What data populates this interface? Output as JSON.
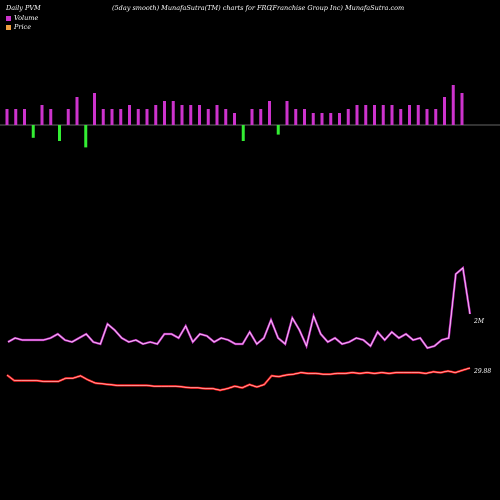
{
  "header": {
    "left": "Daily PVM",
    "center": "(5day smooth) MunafaSutra(TM) charts for FRG",
    "right": "(Franchise Group Inc) MunafaSutra.com"
  },
  "legend": [
    {
      "label": "Volume",
      "color": "#cc33cc"
    },
    {
      "label": "Price",
      "color": "#f0a040"
    }
  ],
  "chart_data": {
    "type": "bar+line",
    "bars": {
      "description": "daily volume bars (up=magenta, down=green)",
      "values": [
        {
          "v": 4,
          "up": true
        },
        {
          "v": 4,
          "up": true
        },
        {
          "v": 4,
          "up": true
        },
        {
          "v": 4,
          "up": false
        },
        {
          "v": 5,
          "up": true
        },
        {
          "v": 4,
          "up": true
        },
        {
          "v": 5,
          "up": false
        },
        {
          "v": 4,
          "up": true
        },
        {
          "v": 7,
          "up": true
        },
        {
          "v": 7,
          "up": false
        },
        {
          "v": 8,
          "up": true
        },
        {
          "v": 4,
          "up": true
        },
        {
          "v": 4,
          "up": true
        },
        {
          "v": 4,
          "up": true
        },
        {
          "v": 5,
          "up": true
        },
        {
          "v": 4,
          "up": true
        },
        {
          "v": 4,
          "up": true
        },
        {
          "v": 5,
          "up": true
        },
        {
          "v": 6,
          "up": true
        },
        {
          "v": 6,
          "up": true
        },
        {
          "v": 5,
          "up": true
        },
        {
          "v": 5,
          "up": true
        },
        {
          "v": 5,
          "up": true
        },
        {
          "v": 4,
          "up": true
        },
        {
          "v": 5,
          "up": true
        },
        {
          "v": 4,
          "up": true
        },
        {
          "v": 3,
          "up": true
        },
        {
          "v": 5,
          "up": false
        },
        {
          "v": 4,
          "up": true
        },
        {
          "v": 4,
          "up": true
        },
        {
          "v": 6,
          "up": true
        },
        {
          "v": 3,
          "up": false
        },
        {
          "v": 6,
          "up": true
        },
        {
          "v": 4,
          "up": true
        },
        {
          "v": 4,
          "up": true
        },
        {
          "v": 3,
          "up": true
        },
        {
          "v": 3,
          "up": true
        },
        {
          "v": 3,
          "up": true
        },
        {
          "v": 3,
          "up": true
        },
        {
          "v": 4,
          "up": true
        },
        {
          "v": 5,
          "up": true
        },
        {
          "v": 5,
          "up": true
        },
        {
          "v": 5,
          "up": true
        },
        {
          "v": 5,
          "up": true
        },
        {
          "v": 5,
          "up": true
        },
        {
          "v": 4,
          "up": true
        },
        {
          "v": 5,
          "up": true
        },
        {
          "v": 5,
          "up": true
        },
        {
          "v": 4,
          "up": true
        },
        {
          "v": 4,
          "up": true
        },
        {
          "v": 7,
          "up": true
        },
        {
          "v": 10,
          "up": true
        },
        {
          "v": 8,
          "up": true
        }
      ]
    },
    "volume_line": {
      "label": "2M",
      "values": [
        18,
        20,
        19,
        19,
        19,
        19,
        20,
        22,
        19,
        18,
        20,
        22,
        18,
        17,
        27,
        24,
        20,
        18,
        19,
        17,
        18,
        17,
        22,
        22,
        20,
        26,
        18,
        22,
        21,
        18,
        20,
        19,
        17,
        17,
        23,
        17,
        20,
        29,
        20,
        17,
        30,
        24,
        16,
        31,
        22,
        18,
        20,
        17,
        18,
        20,
        19,
        16,
        23,
        19,
        23,
        20,
        22,
        19,
        20,
        15,
        16,
        19,
        20,
        52,
        55,
        32
      ]
    },
    "price_line": {
      "label": "29.88",
      "values": [
        29.0,
        28.3,
        28.3,
        28.3,
        28.3,
        28.2,
        28.2,
        28.2,
        28.6,
        28.6,
        28.9,
        28.4,
        28.0,
        27.9,
        27.8,
        27.7,
        27.7,
        27.7,
        27.7,
        27.7,
        27.6,
        27.6,
        27.6,
        27.6,
        27.5,
        27.4,
        27.4,
        27.3,
        27.3,
        27.1,
        27.3,
        27.6,
        27.4,
        27.8,
        27.5,
        27.8,
        28.9,
        28.8,
        29.0,
        29.1,
        29.3,
        29.2,
        29.2,
        29.1,
        29.1,
        29.2,
        29.2,
        29.3,
        29.2,
        29.3,
        29.2,
        29.3,
        29.2,
        29.3,
        29.3,
        29.3,
        29.3,
        29.2,
        29.4,
        29.3,
        29.5,
        29.3,
        29.6,
        29.88
      ]
    }
  }
}
